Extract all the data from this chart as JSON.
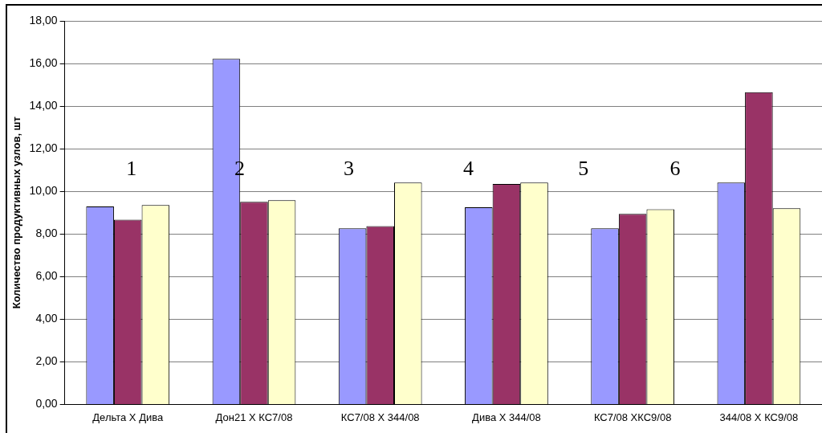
{
  "chart_data": {
    "type": "bar",
    "ylabel": "Количество продуктивных узлов, шт",
    "categories": [
      "Дельта Х Дива",
      "Дон21 Х КС7/08",
      "КС7/08 Х 344/08",
      "Дива Х 344/08",
      "КС7/08 ХКС9/08",
      "344/08 Х КС9/08"
    ],
    "series": [
      {
        "color": "#9999ff",
        "values": [
          9.29,
          16.22,
          8.26,
          9.25,
          8.26,
          10.41
        ]
      },
      {
        "color": "#993366",
        "values": [
          8.67,
          9.51,
          8.37,
          10.35,
          8.94,
          14.65
        ]
      },
      {
        "color": "#ffffcc",
        "values": [
          9.36,
          9.58,
          10.41,
          10.41,
          9.16,
          9.21
        ]
      }
    ],
    "ylim": [
      0,
      18
    ],
    "yticks": [
      {
        "value": 0,
        "label": "0,00"
      },
      {
        "value": 2,
        "label": "2,00"
      },
      {
        "value": 4,
        "label": "4,00"
      },
      {
        "value": 6,
        "label": "6,00"
      },
      {
        "value": 8,
        "label": "8,00"
      },
      {
        "value": 10,
        "label": "10,00"
      },
      {
        "value": 12,
        "label": "12,00"
      },
      {
        "value": 14,
        "label": "14,00"
      },
      {
        "value": 16,
        "label": "16,00"
      },
      {
        "value": 18,
        "label": "18,00"
      }
    ],
    "grid": "y",
    "legend": false,
    "annotations": [
      "1",
      "2",
      "3",
      "4",
      "5",
      "6"
    ]
  }
}
